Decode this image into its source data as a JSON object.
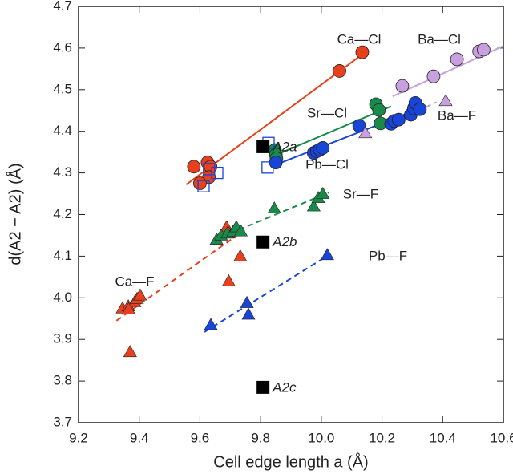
{
  "chart_data": {
    "type": "scatter",
    "xlabel": "Cell edge length a (Å)",
    "ylabel": "d(A2 − A2) (Å)",
    "xlim": [
      9.2,
      10.6
    ],
    "ylim": [
      3.7,
      4.7
    ],
    "xticks": [
      9.2,
      9.4,
      9.6,
      9.8,
      {
        "value": 10,
        "label": "10.0"
      },
      10.2,
      10.4,
      10.6
    ],
    "yticks": [
      3.7,
      3.8,
      3.9,
      {
        "value": 4,
        "label": "4.0"
      },
      4.1,
      4.2,
      4.3,
      4.4,
      4.5,
      4.6,
      4.7
    ],
    "series": [
      {
        "name": "Ca—Cl",
        "color": "#e8401c",
        "marker": "circle",
        "fit_style": "solid",
        "x": [
          9.58,
          9.625,
          9.635,
          9.63,
          9.6,
          10.06,
          10.135
        ],
        "values": [
          4.315,
          4.325,
          4.315,
          4.29,
          4.275,
          4.545,
          4.59
        ],
        "fit": {
          "x": [
            9.555,
            10.156
          ],
          "y": [
            4.272,
            4.596
          ]
        }
      },
      {
        "name": "Sr—Cl",
        "color": "#1a8a4a",
        "marker": "circle",
        "fit_style": "solid",
        "x": [
          9.847,
          9.85,
          9.852,
          10.18,
          10.19,
          10.195
        ],
        "values": [
          4.355,
          4.344,
          4.335,
          4.465,
          4.451,
          4.419
        ],
        "fit": {
          "x": [
            9.84,
            10.23
          ],
          "y": [
            4.34,
            4.46
          ]
        }
      },
      {
        "name": "Pb—Cl",
        "color": "#1844d8",
        "marker": "circle",
        "fit_style": "solid",
        "x": [
          9.85,
          9.975,
          9.985,
          9.995,
          10.005,
          10.125,
          10.23,
          10.24,
          10.255,
          10.295,
          10.305,
          10.31,
          10.325
        ],
        "values": [
          4.325,
          4.348,
          4.352,
          4.356,
          4.36,
          4.413,
          4.418,
          4.425,
          4.428,
          4.44,
          4.455,
          4.468,
          4.453
        ],
        "fit": {
          "x": [
            9.84,
            10.315
          ],
          "y": [
            4.317,
            4.452
          ]
        }
      },
      {
        "name": "Ba—Cl",
        "color": "#c8a0e0",
        "marker": "circle",
        "fit_style": "solid",
        "x": [
          10.267,
          10.37,
          10.447,
          10.52,
          10.535
        ],
        "values": [
          4.509,
          4.532,
          4.573,
          4.592,
          4.596
        ],
        "fit": {
          "x": [
            10.235,
            10.6
          ],
          "y": [
            4.484,
            4.605
          ]
        }
      },
      {
        "name": "Ca—F",
        "color": "#e8401c",
        "marker": "triangle",
        "fit_style": "dashed",
        "x": [
          9.345,
          9.364,
          9.385,
          9.393,
          9.403,
          9.365,
          9.37,
          9.688,
          9.695,
          9.733,
          9.695
        ],
        "values": [
          3.975,
          3.98,
          3.99,
          3.998,
          4.006,
          3.973,
          3.87,
          4.17,
          4.155,
          4.1,
          4.04
        ],
        "fit": {
          "x": [
            9.325,
            9.747
          ],
          "y": [
            3.945,
            4.163
          ]
        }
      },
      {
        "name": "Sr—F",
        "color": "#1a8a4a",
        "marker": "triangle",
        "fit_style": "dashed",
        "x": [
          9.655,
          9.67,
          9.69,
          9.71,
          9.72,
          9.735,
          9.845,
          9.975,
          9.99,
          10.005
        ],
        "values": [
          4.14,
          4.15,
          4.155,
          4.16,
          4.17,
          4.16,
          4.215,
          4.22,
          4.24,
          4.25
        ],
        "fit": {
          "x": [
            9.64,
            10.025
          ],
          "y": [
            4.137,
            4.253
          ]
        }
      },
      {
        "name": "Pb—F",
        "color": "#1844d8",
        "marker": "triangle",
        "fit_style": "dashed",
        "x": [
          9.636,
          9.755,
          9.76,
          10.02
        ],
        "values": [
          3.935,
          3.988,
          3.96,
          4.103
        ],
        "fit": {
          "x": [
            9.615,
            10.025
          ],
          "y": [
            3.918,
            4.103
          ]
        }
      },
      {
        "name": "Ba—F",
        "color": "#c8a0e0",
        "marker": "triangle",
        "fit_style": "dashed",
        "x": [
          10.145,
          10.41
        ],
        "values": [
          4.396,
          4.473
        ],
        "fit": {
          "x": [
            10.2,
            10.38
          ],
          "y": [
            4.41,
            4.47
          ]
        }
      },
      {
        "color": "#1844d8",
        "marker": "square-open",
        "x": [
          9.826,
          9.823,
          9.63,
          9.657,
          9.612
        ],
        "values": [
          4.372,
          4.313,
          4.309,
          4.3,
          4.268
        ]
      },
      {
        "color": "#000000",
        "marker": "square",
        "x": [
          9.808,
          9.808,
          9.808
        ],
        "values": [
          4.363,
          4.134,
          3.785
        ],
        "point_labels": [
          "A2a",
          "A2b",
          "A2c"
        ]
      }
    ]
  }
}
